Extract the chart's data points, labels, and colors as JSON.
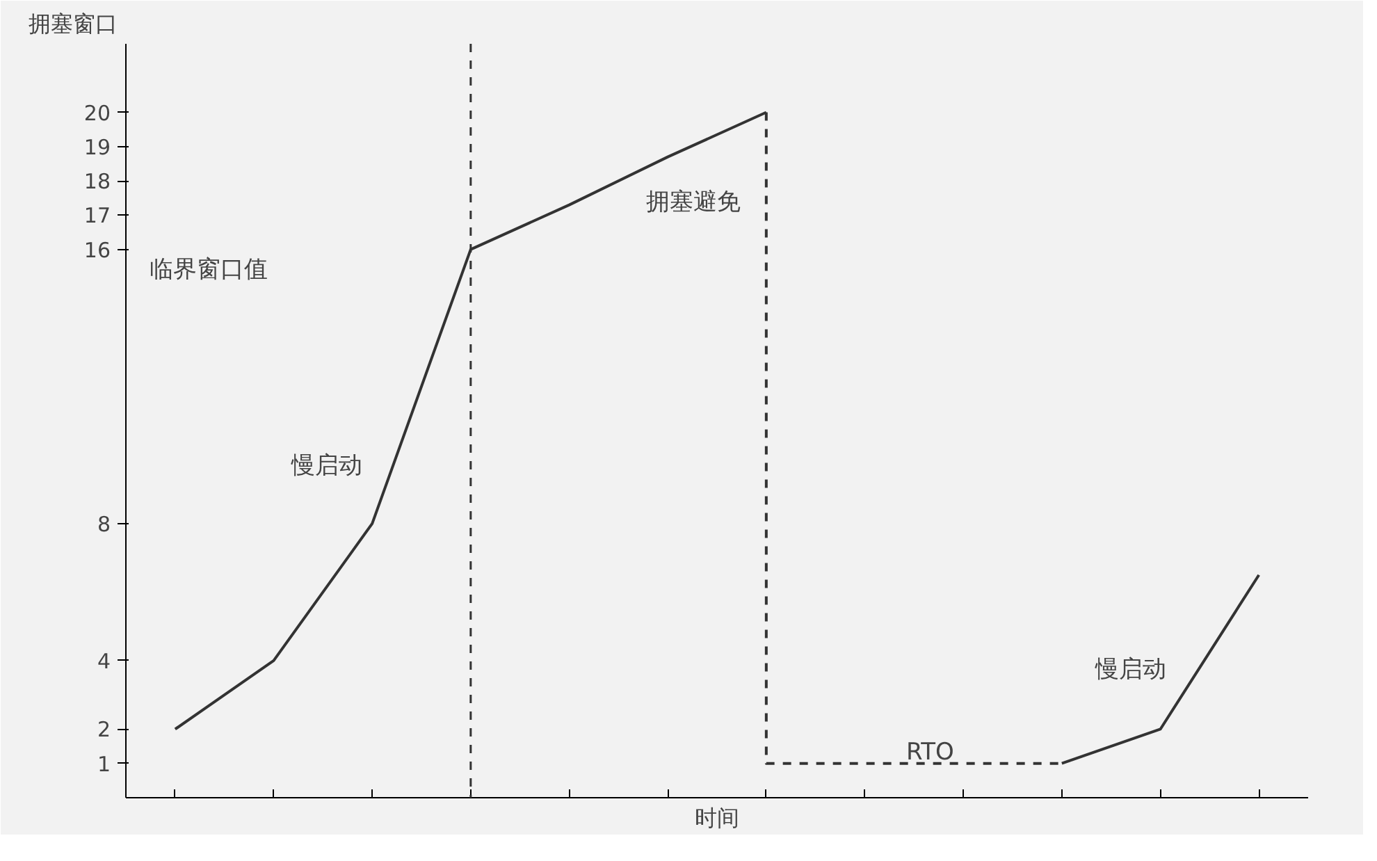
{
  "chart_data": {
    "type": "line",
    "xlabel": "时间",
    "ylabel": "拥塞窗口",
    "categories": [
      null,
      null,
      null,
      null,
      null,
      null,
      null,
      null,
      null,
      null,
      null,
      null
    ],
    "ylim": [
      0,
      22
    ],
    "yticks": [
      1,
      2,
      4,
      8,
      16,
      17,
      18,
      19,
      20
    ],
    "series": [
      {
        "color": "#333333",
        "values": [
          2,
          4,
          8,
          16,
          17.3,
          18.7,
          20,
          null,
          null,
          null,
          null,
          null
        ],
        "line_style": "solid"
      },
      {
        "type": "step",
        "color": "#333333",
        "values": [
          null,
          null,
          null,
          null,
          null,
          null,
          20,
          1,
          1,
          1,
          null,
          null
        ],
        "line_style": "dashed"
      },
      {
        "color": "#333333",
        "values": [
          null,
          null,
          null,
          null,
          null,
          null,
          null,
          null,
          null,
          1,
          2,
          6.5
        ],
        "line_style": "solid"
      }
    ],
    "annotations": [
      "临界窗口值",
      "慢启动",
      "拥塞避免",
      "RTO",
      "慢启动"
    ],
    "grid": false
  }
}
